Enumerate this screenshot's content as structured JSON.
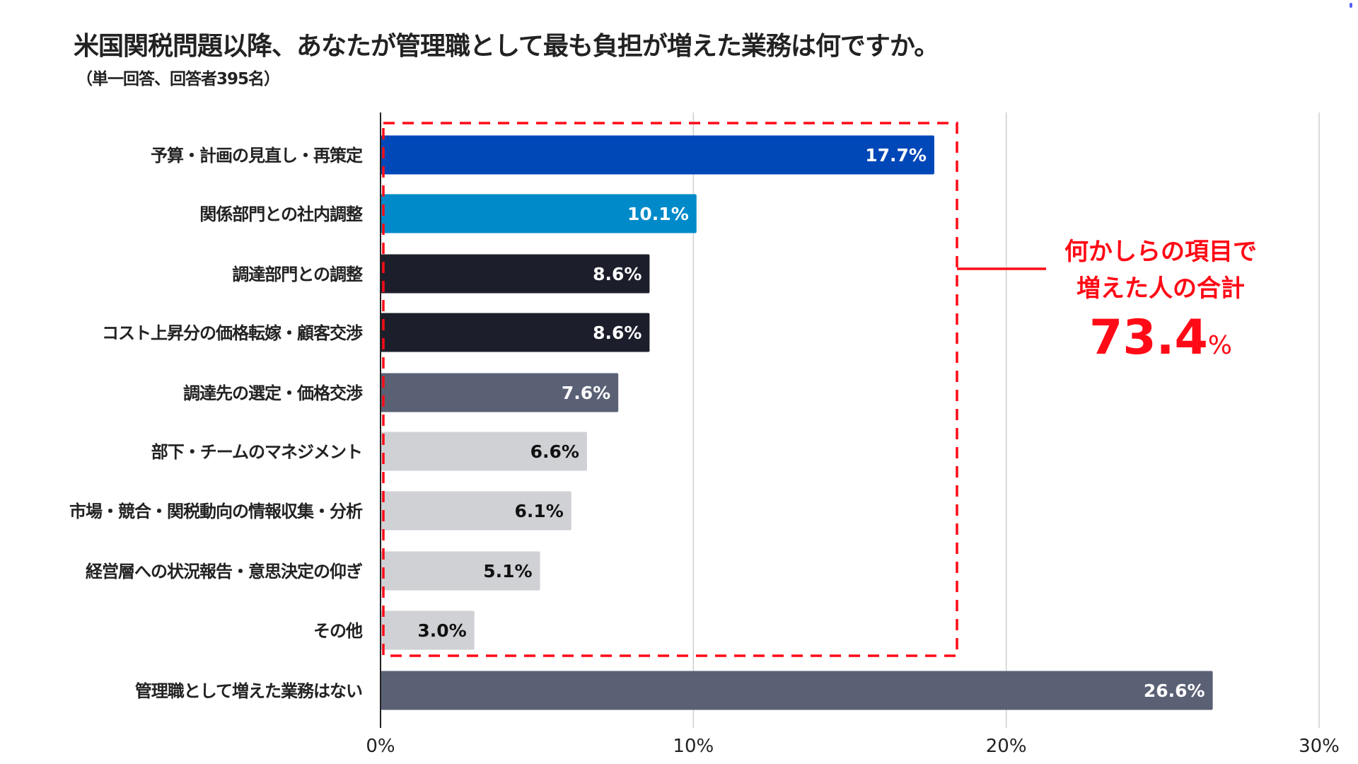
{
  "chart_data": {
    "type": "bar",
    "orientation": "horizontal",
    "title": "米国関税問題以降、あなたが管理職として最も負担が増えた業務は何ですか。",
    "subtitle": "（単一回答、回答者395名）",
    "categories": [
      "予算・計画の見直し・再策定",
      "関係部門との社内調整",
      "調達部門との調整",
      "コスト上昇分の価格転嫁・顧客交渉",
      "調達先の選定・価格交渉",
      "部下・チームのマネジメント",
      "市場・競合・関税動向の情報収集・分析",
      "経営層への状況報告・意思決定の仰ぎ",
      "その他",
      "管理職として増えた業務はない"
    ],
    "values": [
      17.7,
      10.1,
      8.6,
      8.6,
      7.6,
      6.6,
      6.1,
      5.1,
      3.0,
      26.6
    ],
    "value_labels": [
      "17.7%",
      "10.1%",
      "8.6%",
      "8.6%",
      "7.6%",
      "6.6%",
      "6.1%",
      "5.1%",
      "3.0%",
      "26.6%"
    ],
    "colors": [
      "#0047b8",
      "#008ac9",
      "#1c1f2b",
      "#1c1f2b",
      "#5a6175",
      "#d0d1d5",
      "#d0d1d5",
      "#d0d1d5",
      "#d0d1d5",
      "#5a6175"
    ],
    "label_colors": [
      "#ffffff",
      "#ffffff",
      "#ffffff",
      "#ffffff",
      "#ffffff",
      "#111111",
      "#111111",
      "#111111",
      "#111111",
      "#ffffff"
    ],
    "xlim": [
      0,
      30
    ],
    "xticks": [
      0,
      10,
      20,
      30
    ],
    "xtick_labels": [
      "0%",
      "10%",
      "20%",
      "30%"
    ],
    "grid": true,
    "legend": "none",
    "annotation": {
      "line1": "何かしらの項目で",
      "line2": "増えた人の合計",
      "value": "73.4",
      "unit": "%",
      "color": "#ff0a16",
      "bracketed_categories_count": 9
    }
  }
}
